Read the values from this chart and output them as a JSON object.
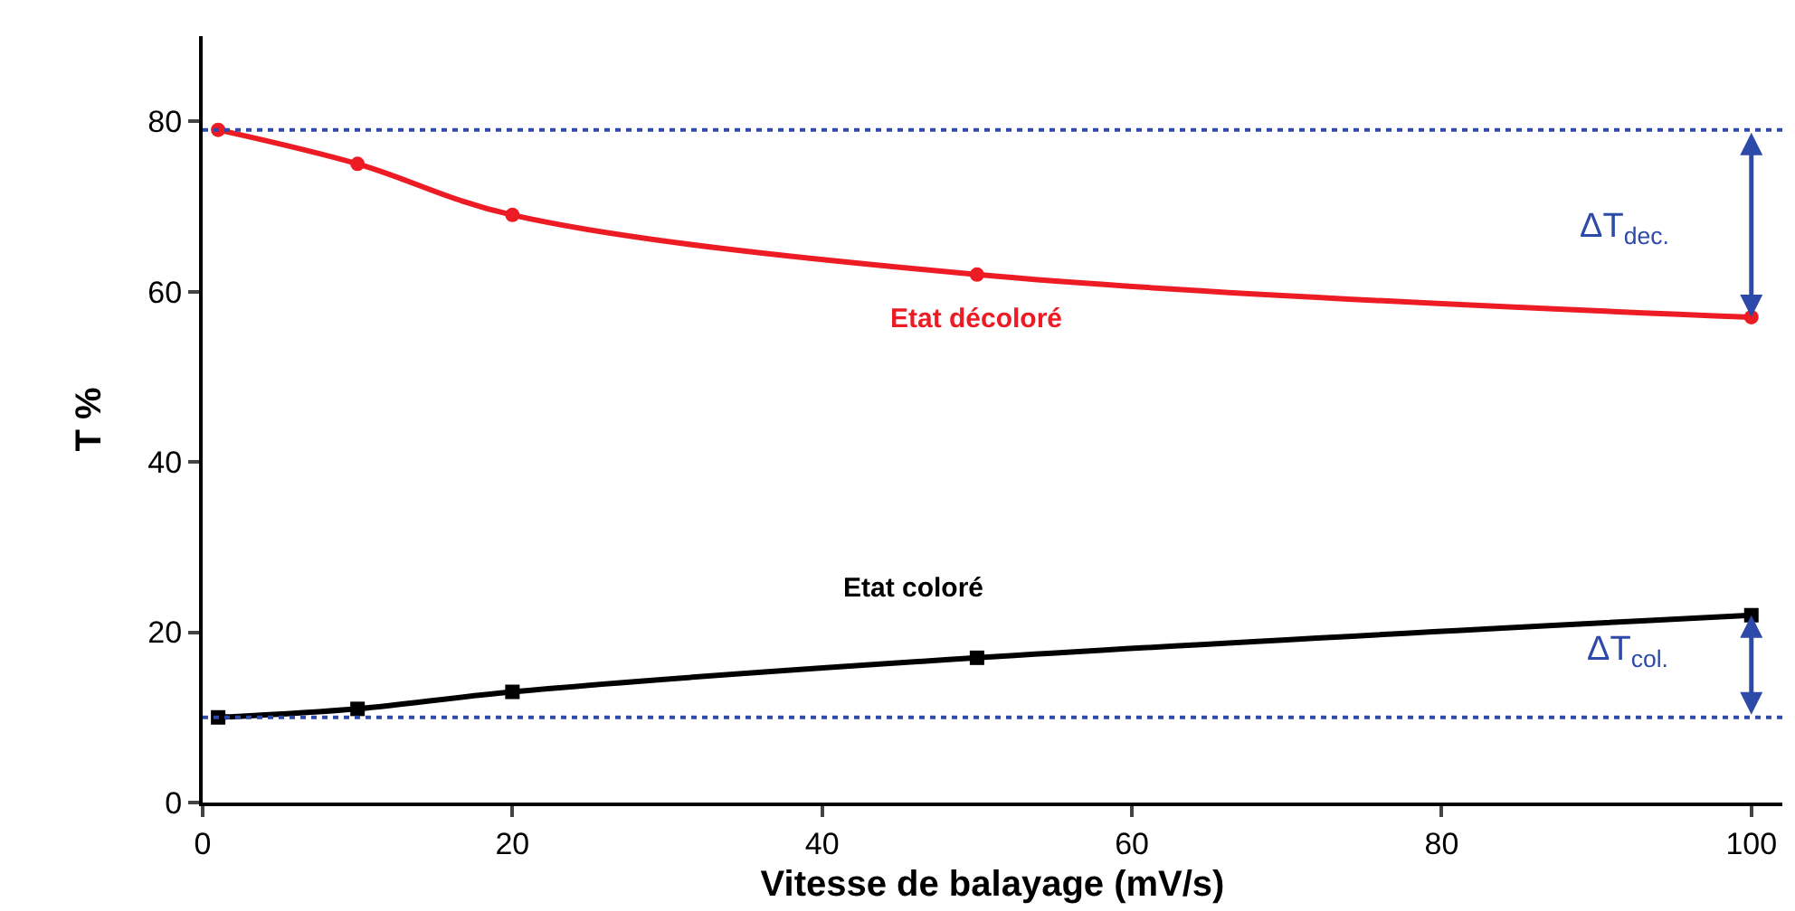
{
  "chart_data": {
    "type": "line",
    "xlabel": "Vitesse de balayage (mV/s)",
    "ylabel": "T %",
    "x": [
      1,
      10,
      20,
      50,
      100
    ],
    "series": [
      {
        "color": "#ed1c24",
        "values": [
          79,
          75,
          69,
          62,
          57
        ],
        "marker": "circle"
      },
      {
        "color": "#000000",
        "values": [
          10,
          11,
          13,
          17,
          22
        ],
        "marker": "square"
      }
    ],
    "xlim": [
      0,
      102
    ],
    "ylim": [
      0,
      90
    ],
    "xticks": [
      0,
      20,
      40,
      60,
      80,
      100
    ],
    "yticks": [
      0,
      20,
      40,
      60,
      80
    ],
    "ref_lines": [
      {
        "axis": "y",
        "value": 79,
        "color": "#2e4aa8",
        "line_style": "dotted"
      },
      {
        "axis": "y",
        "value": 10,
        "color": "#2e4aa8",
        "line_style": "dotted"
      }
    ],
    "annotations": [
      "Etat décoloré",
      "Etat coloré",
      "ΔT$_{dec.}$",
      "ΔT$_{col.}$"
    ],
    "line_style": "solid"
  }
}
